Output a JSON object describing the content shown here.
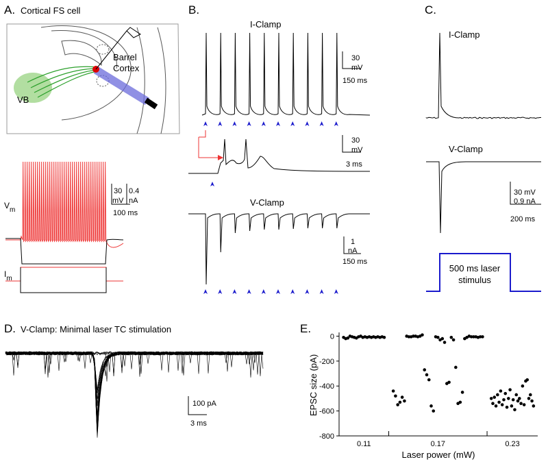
{
  "panel_a": {
    "label": "A.",
    "title": "Cortical FS cell",
    "region_labels": [
      "Barrel",
      "Cortex",
      "VB"
    ],
    "vm_label": "V",
    "vm_sub": "m",
    "scale": [
      "30",
      "mV",
      "0.4",
      "nA",
      "100 ms"
    ],
    "im_label": "I",
    "im_sub": "m"
  },
  "panel_b": {
    "label": "B.",
    "iclamp_title": "I-Clamp",
    "iclamp_scale": [
      "30",
      "mV",
      "150 ms"
    ],
    "inset_scale": [
      "30",
      "mV",
      "3 ms"
    ],
    "vclamp_title": "V-Clamp",
    "vclamp_scale": [
      "1",
      "nA",
      "150 ms"
    ]
  },
  "panel_c": {
    "label": "C.",
    "iclamp_title": "I-Clamp",
    "vclamp_title": "V-Clamp",
    "scale": [
      "30 mV",
      "0.9 nA",
      "200 ms"
    ],
    "stimulus_label": [
      "500 ms laser",
      "stimulus"
    ]
  },
  "panel_d": {
    "label": "D.",
    "title": "V-Clamp: Minimal laser TC stimulation",
    "scale": [
      "100 pA",
      "3 ms"
    ]
  },
  "panel_e": {
    "label": "E."
  },
  "chart_data": {
    "type": "strip",
    "x_label": "Laser power (mW)",
    "y_label": "EPSC size (pA)",
    "color": "#000000",
    "categories": [
      "0.11",
      "0.17",
      "0.23"
    ],
    "groups": [
      [
        -10,
        -20,
        -15,
        0,
        -5,
        -10,
        -15,
        -5,
        0,
        -10,
        -5,
        -10,
        -5,
        -10,
        -5,
        -10,
        -5,
        -10,
        -5,
        -10
      ],
      [
        -440,
        -480,
        -550,
        -530,
        -490,
        -520,
        0,
        -5,
        -5,
        0,
        0,
        -5,
        0,
        10,
        -270,
        -310,
        -350,
        -560,
        -600,
        -5,
        -10,
        -30,
        -20,
        -50,
        -380,
        -370,
        -10,
        -30,
        -250,
        -540,
        -530,
        -450,
        -20,
        -10,
        0,
        -5,
        -5,
        -5,
        -10,
        -5,
        -5
      ],
      [
        -500,
        -540,
        -490,
        -560,
        -470,
        -530,
        -440,
        -550,
        -510,
        -460,
        -570,
        -500,
        -430,
        -560,
        -510,
        -590,
        -470,
        -520,
        -500,
        -540,
        -400,
        -550,
        -360,
        -350,
        -500,
        -470,
        -520,
        -560
      ]
    ],
    "ylim": [
      -800,
      30
    ],
    "yticks": [
      0,
      -200,
      -400,
      -600,
      -800
    ]
  }
}
